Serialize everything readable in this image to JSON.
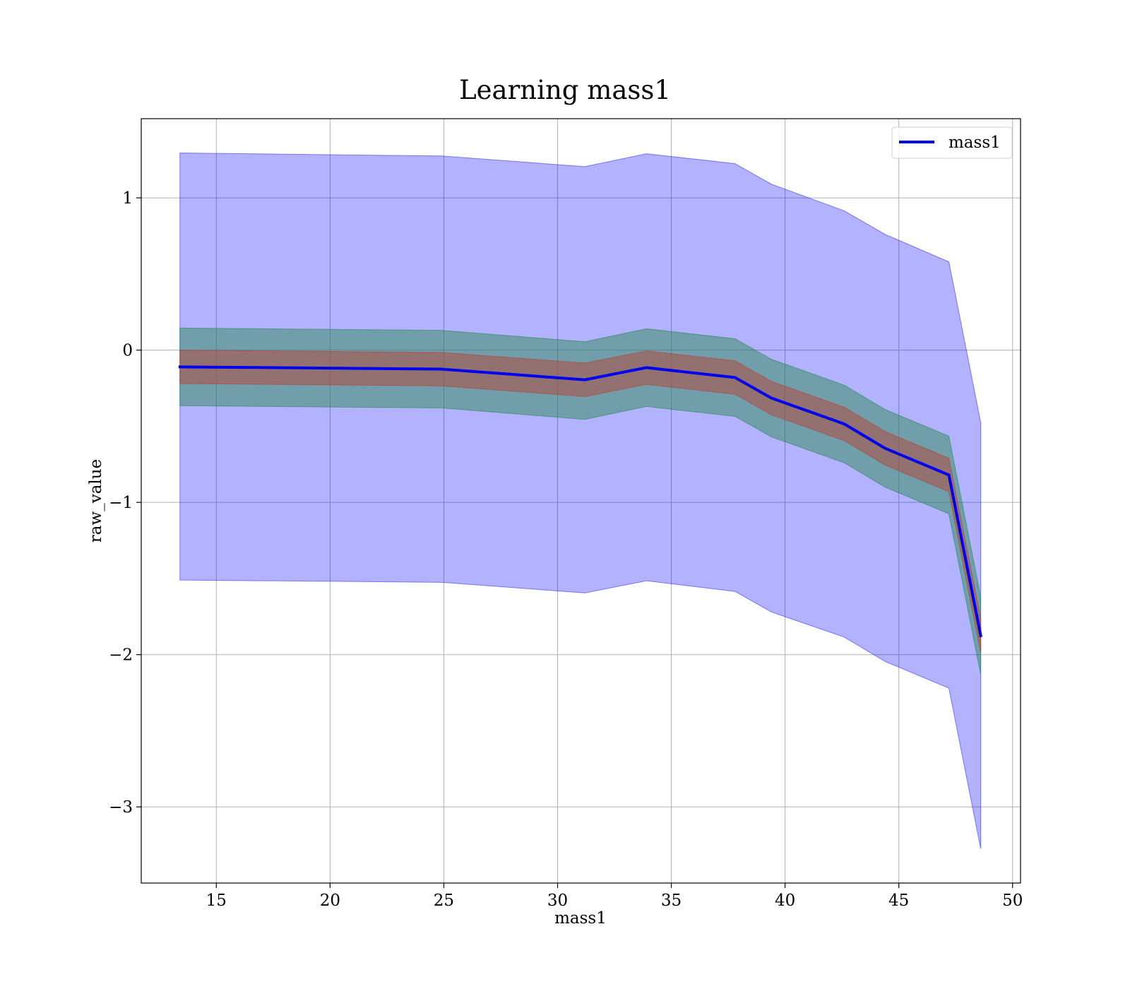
{
  "chart_data": {
    "type": "line",
    "title": "Learning mass1",
    "xlabel": "mass1",
    "ylabel": "raw_value",
    "xlim": [
      11.7,
      50.35
    ],
    "ylim": [
      -3.5,
      1.52
    ],
    "xticks": [
      15,
      20,
      25,
      30,
      35,
      40,
      45,
      50
    ],
    "xtick_labels": [
      "15",
      "20",
      "25",
      "30",
      "35",
      "40",
      "45",
      "50"
    ],
    "yticks": [
      1,
      0,
      -1,
      -2,
      -3
    ],
    "ytick_labels": [
      "1",
      "0",
      "−1",
      "−2",
      "−3"
    ],
    "grid": true,
    "legend_position": "top-right",
    "x": [
      13.4,
      24.9,
      31.2,
      33.9,
      37.8,
      39.4,
      42.6,
      44.4,
      47.2,
      48.6
    ],
    "series": [
      {
        "name": "mass1",
        "color": "#0000ee",
        "values": [
          -0.11,
          -0.125,
          -0.195,
          -0.115,
          -0.18,
          -0.315,
          -0.485,
          -0.645,
          -0.82,
          -1.875
        ]
      }
    ],
    "bands": [
      {
        "color": "#0000ff",
        "opacity": 0.3,
        "upper": [
          1.295,
          1.275,
          1.205,
          1.29,
          1.225,
          1.09,
          0.915,
          0.76,
          0.58,
          -0.475
        ],
        "lower": [
          -1.51,
          -1.525,
          -1.595,
          -1.515,
          -1.585,
          -1.72,
          -1.885,
          -2.045,
          -2.22,
          -3.275
        ]
      },
      {
        "color": "#2e8b57",
        "opacity": 0.5,
        "upper": [
          0.145,
          0.13,
          0.055,
          0.14,
          0.075,
          -0.06,
          -0.23,
          -0.39,
          -0.565,
          -1.62
        ],
        "lower": [
          -0.365,
          -0.38,
          -0.455,
          -0.37,
          -0.435,
          -0.57,
          -0.74,
          -0.9,
          -1.075,
          -2.13
        ]
      },
      {
        "color": "#c0392b",
        "opacity": 0.45,
        "upper": [
          0.0,
          -0.015,
          -0.085,
          -0.005,
          -0.07,
          -0.205,
          -0.375,
          -0.535,
          -0.71,
          -1.765
        ],
        "lower": [
          -0.22,
          -0.235,
          -0.305,
          -0.225,
          -0.29,
          -0.425,
          -0.595,
          -0.755,
          -0.93,
          -1.985
        ]
      }
    ]
  }
}
